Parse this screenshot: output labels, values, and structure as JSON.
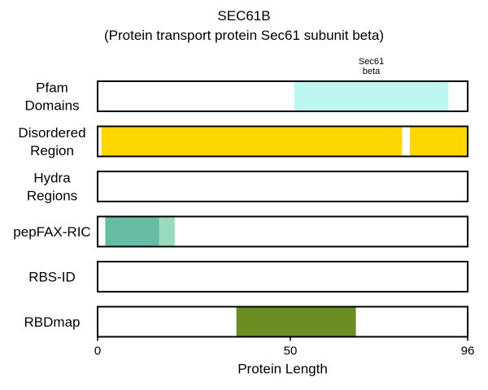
{
  "chart_data": {
    "type": "feature-tracks",
    "title": "SEC61B",
    "subtitle": "(Protein transport protein Sec61 subunit beta)",
    "xlabel": "Protein Length",
    "xlim": [
      0,
      96
    ],
    "xticks": [
      0,
      50,
      96
    ],
    "tracks": [
      {
        "name": "Pfam Domains",
        "label_lines": [
          "Pfam",
          "Domains"
        ],
        "features": [
          {
            "start": 51,
            "end": 91,
            "color": "#bbf7f0",
            "label": [
              "Sec61",
              "beta"
            ]
          }
        ]
      },
      {
        "name": "Disordered Region",
        "label_lines": [
          "Disordered",
          "Region"
        ],
        "features": [
          {
            "start": 1,
            "end": 79,
            "color": "#ffd700"
          },
          {
            "start": 81,
            "end": 96,
            "color": "#ffd700"
          }
        ]
      },
      {
        "name": "Hydra Regions",
        "label_lines": [
          "Hydra",
          "Regions"
        ],
        "features": []
      },
      {
        "name": "pepFAX-RIC",
        "label_lines": [
          "pepFAX-RIC"
        ],
        "features": [
          {
            "start": 2,
            "end": 16,
            "color": "#66bba3"
          },
          {
            "start": 16,
            "end": 20,
            "color": "#98dbbf"
          }
        ]
      },
      {
        "name": "RBS-ID",
        "label_lines": [
          "RBS-ID"
        ],
        "features": []
      },
      {
        "name": "RBDmap",
        "label_lines": [
          "RBDmap"
        ],
        "features": [
          {
            "start": 36,
            "end": 67,
            "color": "#6b8e23"
          }
        ]
      }
    ]
  }
}
